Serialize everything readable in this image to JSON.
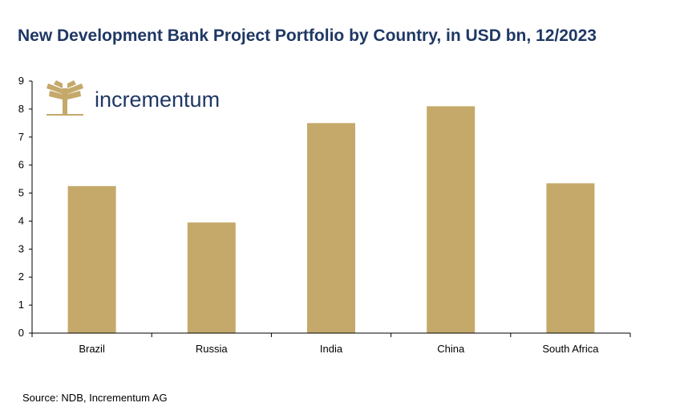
{
  "title": "New Development Bank Project Portfolio by Country, in USD bn, 12/2023",
  "source": "Source: NDB, Incrementum AG",
  "logo": {
    "text": "incrementum",
    "icon": "tree-icon",
    "color": "#c4a96a"
  },
  "colors": {
    "bar": "#c4a96a",
    "axis": "#000000",
    "title": "#1f3864"
  },
  "chart_data": {
    "type": "bar",
    "title": "New Development Bank Project Portfolio by Country, in USD bn, 12/2023",
    "categories": [
      "Brazil",
      "Russia",
      "India",
      "China",
      "South Africa"
    ],
    "values": [
      5.25,
      3.95,
      7.5,
      8.1,
      5.35
    ],
    "xlabel": "",
    "ylabel": "",
    "ylim": [
      0,
      9
    ],
    "yticks": [
      "0",
      "1",
      "2",
      "3",
      "4",
      "5",
      "6",
      "7",
      "8",
      "9"
    ],
    "grid": false,
    "legend": "none"
  }
}
